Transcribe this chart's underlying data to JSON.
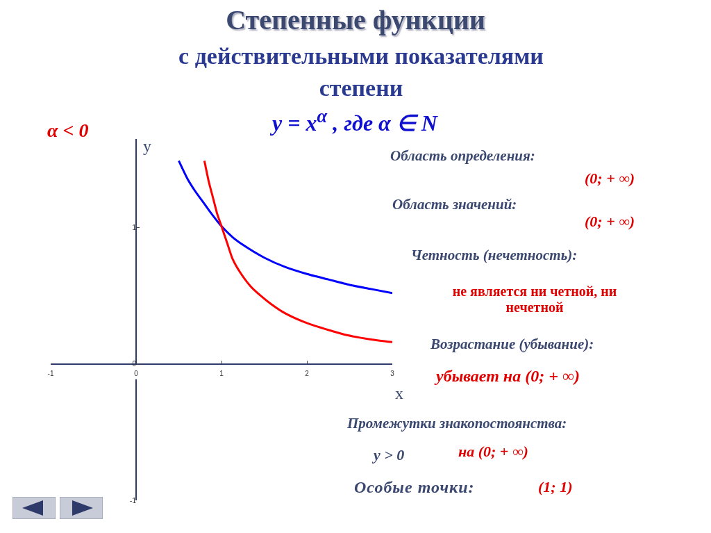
{
  "chart_data": {
    "type": "line",
    "title": "Степенные функции",
    "subtitle": "с действительными показателями степени",
    "xlabel": "x",
    "ylabel": "y",
    "xlim": [
      -1,
      3
    ],
    "xticks": [
      -1,
      0,
      1,
      2,
      3
    ],
    "ylim": [
      -1,
      1.65
    ],
    "yticks": [
      -1,
      0,
      1
    ],
    "marker": "none",
    "line_style": "solid",
    "series": [
      {
        "color": "#0000ff",
        "x": [
          0.5,
          0.6,
          0.7,
          0.77,
          0.85,
          1,
          1.13,
          1.26,
          1.5,
          1.75,
          2,
          2.25,
          2.5,
          2.75,
          3
        ],
        "values": [
          1.49,
          1.36,
          1.26,
          1.2,
          1.13,
          1.01,
          0.93,
          0.87,
          0.78,
          0.71,
          0.66,
          0.62,
          0.58,
          0.55,
          0.52
        ]
      },
      {
        "color": "#ff0000",
        "x": [
          0.8,
          0.85,
          0.9,
          0.95,
          1,
          1.07,
          1.13,
          1.22,
          1.34,
          1.46,
          1.58,
          1.75,
          2,
          2.25,
          2.48,
          2.75,
          3
        ],
        "values": [
          1.49,
          1.34,
          1.22,
          1.1,
          1.01,
          0.88,
          0.77,
          0.67,
          0.57,
          0.5,
          0.44,
          0.37,
          0.3,
          0.25,
          0.21,
          0.18,
          0.16
        ]
      }
    ],
    "annotations": [
      "y = x$^{α}$ , где α ∈ N",
      "α < 0",
      "Область определения:",
      "(0; + ∞)",
      "Область значений:",
      "(0; + ∞)",
      "Четность (нечетность):",
      "не является ни четной, ни  нечетной",
      "Возрастание (убывание):",
      "убывает на (0; + ∞)",
      "Промежутки знакопостоянства:",
      "y > 0",
      "на  (0; + ∞)",
      "Особые точки:",
      "(1; 1)"
    ]
  }
}
